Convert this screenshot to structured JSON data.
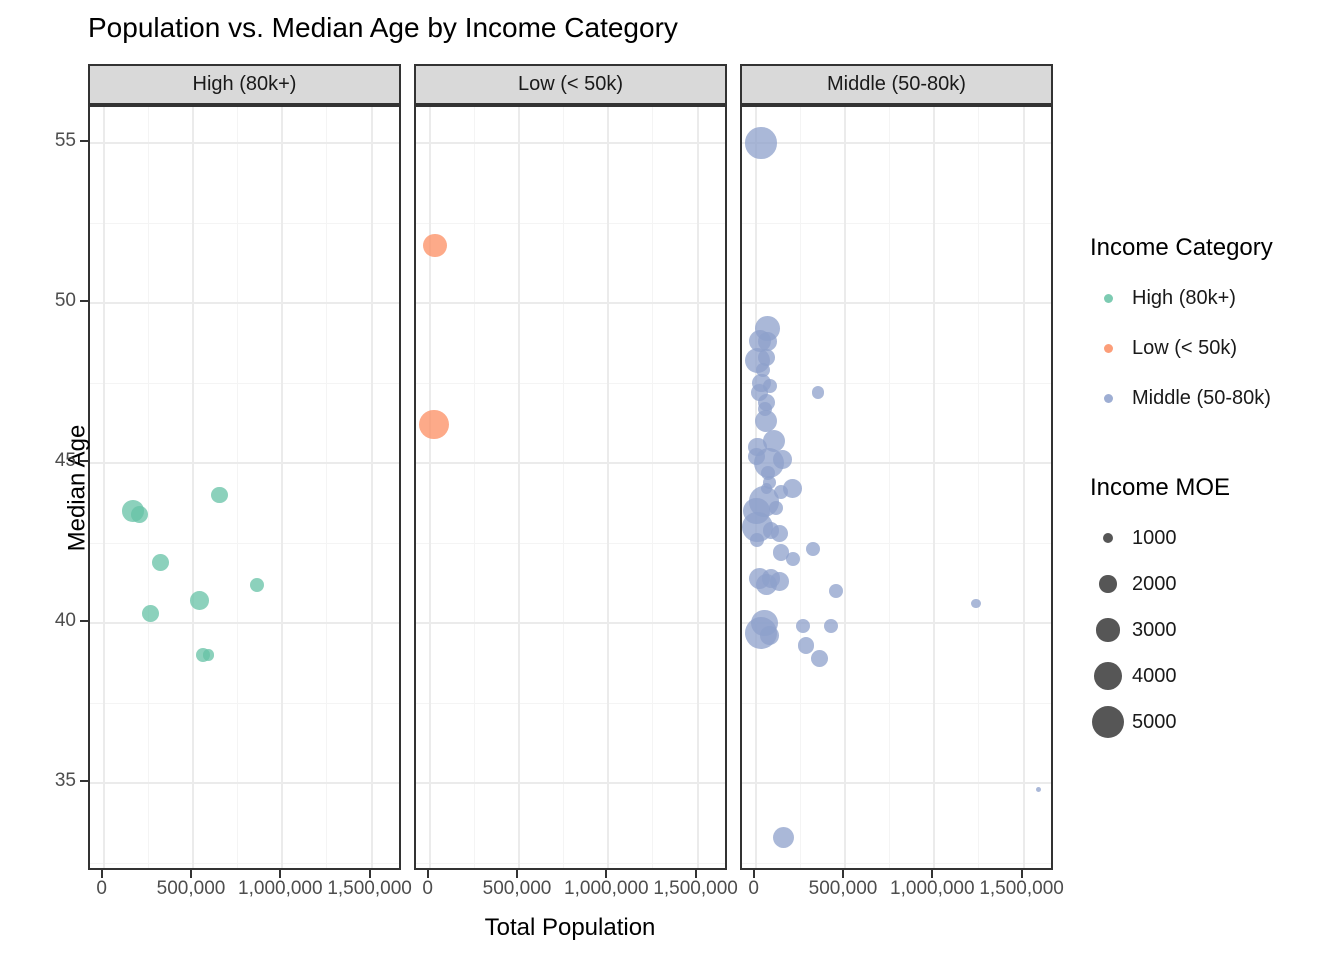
{
  "title": "Population vs. Median Age by Income Category",
  "axes": {
    "x_title": "Total Population",
    "y_title": "Median Age",
    "x_tick_labels": [
      "0",
      "500,000",
      "1,000,000",
      "1,500,000"
    ],
    "y_tick_labels": [
      "55",
      "50",
      "45",
      "40",
      "35"
    ]
  },
  "legend_color": {
    "title": "Income Category",
    "items": [
      "High (80k+)",
      "Low (< 50k)",
      "Middle (50-80k)"
    ]
  },
  "legend_size": {
    "title": "Income MOE",
    "values": [
      "1000",
      "2000",
      "3000",
      "4000",
      "5000"
    ]
  },
  "colors": {
    "high": "#66C2A5",
    "low": "#FC8D62",
    "middle": "#8DA0CB",
    "legend_dot": "#4d4d4d",
    "strip_bg": "#d9d9d9",
    "panel_border": "#333333",
    "grid_major": "#ebebeb",
    "grid_minor": "#f4f4f4",
    "tick_text": "#4d4d4d"
  },
  "chart_data": {
    "type": "scatter",
    "title": "Population vs. Median Age by Income Category",
    "xlabel": "Total Population",
    "ylabel": "Median Age",
    "xlim": [
      -77000,
      1677000
    ],
    "ylim": [
      32.3,
      56.1
    ],
    "x_major_ticks": [
      0,
      500000,
      1000000,
      1500000
    ],
    "x_minor_ticks": [
      250000,
      750000,
      1250000
    ],
    "y_major_ticks": [
      55,
      50,
      45,
      40,
      35
    ],
    "y_minor_ticks": [
      52.5,
      47.5,
      42.5,
      37.5,
      32.5
    ],
    "grid": true,
    "legend_position": "right",
    "size_legend_values": [
      1000,
      2000,
      3000,
      4000,
      5000
    ],
    "point_alpha": 0.75,
    "facets": [
      {
        "label": "High (80k+)",
        "category": "high",
        "points_format": [
          "total_population",
          "median_age",
          "income_moe"
        ],
        "points": [
          [
            650000,
            44.0,
            1900
          ],
          [
            165000,
            43.5,
            2700
          ],
          [
            200000,
            43.4,
            1900
          ],
          [
            320000,
            41.9,
            1900
          ],
          [
            860000,
            41.2,
            1500
          ],
          [
            535000,
            40.7,
            2200
          ],
          [
            260000,
            40.3,
            1900
          ],
          [
            555000,
            39.0,
            1500
          ],
          [
            585000,
            39.0,
            1100
          ]
        ]
      },
      {
        "label": "Low (< 50k)",
        "category": "low",
        "points_format": [
          "total_population",
          "median_age",
          "income_moe"
        ],
        "points": [
          [
            30000,
            51.8,
            3100
          ],
          [
            25000,
            46.2,
            4400
          ]
        ]
      },
      {
        "label": "Middle (50-80k)",
        "category": "middle",
        "points_format": [
          "total_population",
          "median_age",
          "income_moe"
        ],
        "points": [
          [
            30000,
            55.0,
            4800
          ],
          [
            65000,
            49.2,
            3300
          ],
          [
            22000,
            48.8,
            2800
          ],
          [
            65000,
            48.8,
            2200
          ],
          [
            10000,
            48.2,
            3400
          ],
          [
            60000,
            48.3,
            1900
          ],
          [
            41000,
            47.9,
            1500
          ],
          [
            31000,
            47.5,
            2200
          ],
          [
            78000,
            47.4,
            1500
          ],
          [
            349000,
            47.2,
            1300
          ],
          [
            22000,
            47.2,
            1900
          ],
          [
            59000,
            46.9,
            1900
          ],
          [
            50000,
            46.7,
            1500
          ],
          [
            59000,
            46.3,
            2800
          ],
          [
            104000,
            45.7,
            2800
          ],
          [
            10000,
            45.5,
            2200
          ],
          [
            5000,
            45.2,
            1900
          ],
          [
            76000,
            45.0,
            4600
          ],
          [
            151000,
            45.1,
            2200
          ],
          [
            67000,
            44.7,
            1500
          ],
          [
            76000,
            44.4,
            1300
          ],
          [
            207000,
            44.2,
            2200
          ],
          [
            142000,
            44.1,
            1500
          ],
          [
            58000,
            44.2,
            1100
          ],
          [
            48000,
            43.8,
            4600
          ],
          [
            114000,
            43.6,
            1500
          ],
          [
            2000,
            43.5,
            3800
          ],
          [
            11000,
            43.0,
            4600
          ],
          [
            86000,
            42.9,
            1900
          ],
          [
            132000,
            42.8,
            1900
          ],
          [
            5000,
            42.6,
            1500
          ],
          [
            319000,
            42.3,
            1500
          ],
          [
            142000,
            42.2,
            1900
          ],
          [
            207000,
            42.0,
            1500
          ],
          [
            20000,
            41.4,
            2600
          ],
          [
            86000,
            41.4,
            2200
          ],
          [
            132000,
            41.3,
            2200
          ],
          [
            58000,
            41.2,
            2600
          ],
          [
            450000,
            41.0,
            1500
          ],
          [
            1233000,
            40.6,
            900
          ],
          [
            48000,
            40.0,
            3800
          ],
          [
            30000,
            39.7,
            5000
          ],
          [
            76000,
            39.6,
            2200
          ],
          [
            263000,
            39.9,
            1500
          ],
          [
            422000,
            39.9,
            1500
          ],
          [
            282000,
            39.3,
            1900
          ],
          [
            356000,
            38.9,
            1900
          ],
          [
            155000,
            33.3,
            2600
          ],
          [
            1582000,
            34.8,
            500
          ]
        ]
      }
    ]
  }
}
